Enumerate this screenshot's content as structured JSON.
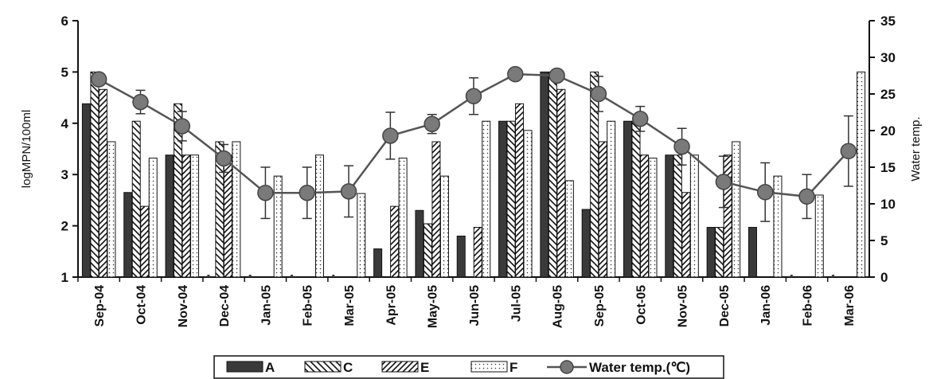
{
  "chart_data": {
    "type": "bar",
    "categories": [
      "Sep-04",
      "Oct-04",
      "Nov-04",
      "Dec-04",
      "Jan-05",
      "Feb-05",
      "Mar-05",
      "Apr-05",
      "May-05",
      "Jun-05",
      "Jul-05",
      "Aug-05",
      "Sep-05",
      "Oct-05",
      "Nov-05",
      "Dec-05",
      "Jan-06",
      "Feb-06",
      "Mar-06"
    ],
    "ylabel": "logMPN/100ml",
    "y2label": "Water temp.",
    "ylim": [
      1,
      6
    ],
    "y2lim": [
      0,
      35
    ],
    "yticks": [
      "1",
      "2",
      "3",
      "4",
      "5",
      "6"
    ],
    "y2ticks": [
      "0",
      "5",
      "10",
      "15",
      "20",
      "25",
      "30",
      "35"
    ],
    "series": [
      {
        "name": "A",
        "pattern": "solid",
        "values": [
          4.38,
          2.65,
          3.38,
          null,
          null,
          null,
          null,
          1.55,
          2.3,
          1.8,
          4.04,
          5.0,
          2.32,
          4.04,
          3.38,
          1.97,
          1.97,
          null,
          null
        ]
      },
      {
        "name": "C",
        "pattern": "backslash-hatch",
        "values": [
          5.0,
          4.04,
          4.38,
          3.64,
          null,
          null,
          null,
          null,
          2.04,
          null,
          4.04,
          5.0,
          5.0,
          4.04,
          3.38,
          1.97,
          null,
          null,
          null
        ]
      },
      {
        "name": "E",
        "pattern": "slash-hatch",
        "values": [
          4.66,
          2.38,
          3.38,
          3.38,
          null,
          null,
          null,
          2.38,
          3.64,
          1.97,
          4.38,
          4.66,
          3.64,
          3.38,
          2.65,
          3.38,
          null,
          null,
          null
        ]
      },
      {
        "name": "F",
        "pattern": "dotted",
        "values": [
          3.64,
          3.32,
          3.38,
          3.64,
          2.97,
          3.38,
          2.63,
          3.32,
          2.97,
          4.04,
          3.86,
          2.88,
          4.04,
          3.32,
          3.38,
          3.64,
          2.97,
          2.6,
          5.0
        ]
      },
      {
        "name": "Water temp.(℃)",
        "type": "line",
        "axis": "right",
        "values": [
          27.0,
          23.9,
          20.6,
          16.2,
          11.5,
          11.5,
          11.7,
          19.3,
          20.9,
          24.7,
          27.7,
          27.5,
          25.0,
          21.6,
          17.8,
          13.0,
          11.6,
          11.0,
          17.2
        ],
        "error": [
          0,
          1.6,
          2.0,
          1.9,
          3.5,
          3.5,
          3.5,
          3.2,
          1.3,
          2.5,
          0,
          0,
          2.4,
          1.7,
          2.5,
          3.5,
          4.0,
          3.0,
          4.8
        ]
      }
    ],
    "legend": {
      "position": "bottom",
      "entries": [
        "A",
        "C",
        "E",
        "F",
        "Water temp.(℃)"
      ]
    },
    "grid": false
  }
}
